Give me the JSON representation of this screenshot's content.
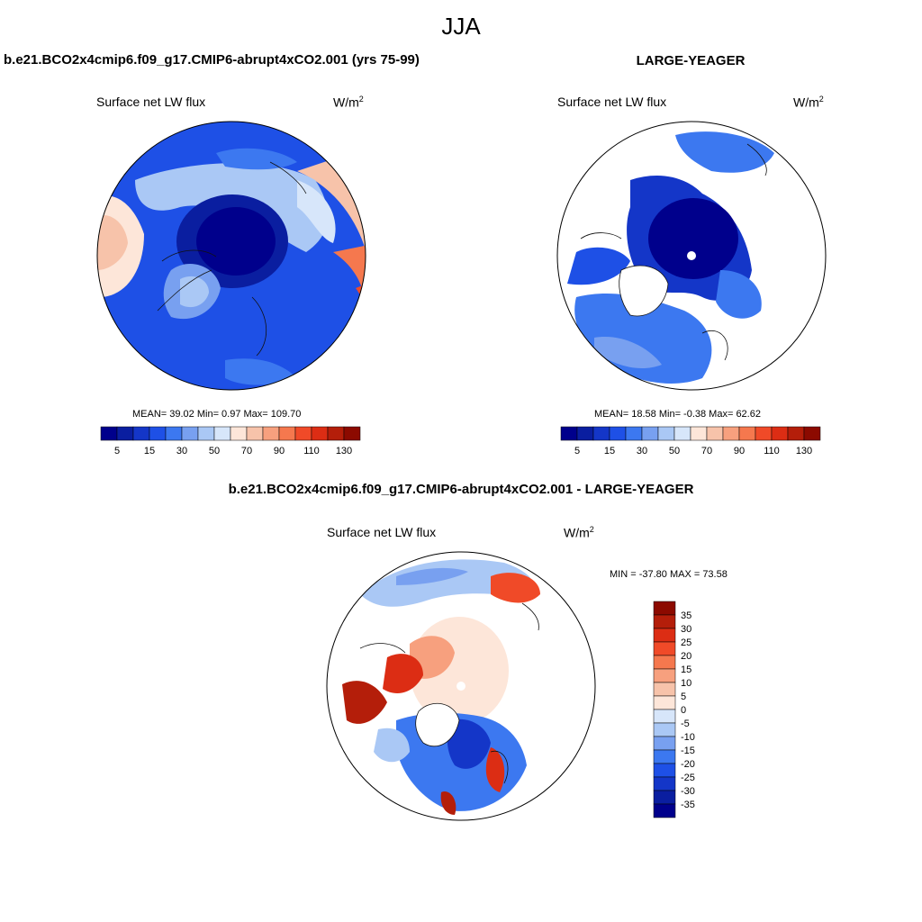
{
  "title": "JJA",
  "colors": {
    "seq": [
      "#00008c",
      "#0a1ea0",
      "#1436c8",
      "#1e50e6",
      "#3c78f0",
      "#78a0f0",
      "#aac8f5",
      "#d7e6fa",
      "#fde6d9",
      "#f7c3aa",
      "#f7a07e",
      "#f5784e",
      "#f04a28",
      "#dc2d14",
      "#b41e0a",
      "#8c0a00"
    ],
    "diff": [
      "#00008c",
      "#0a1ea0",
      "#1436c8",
      "#1e50e6",
      "#3c78f0",
      "#78a0f0",
      "#aac8f5",
      "#d7e6fa",
      "#fde6d9",
      "#f7c3aa",
      "#f7a07e",
      "#f5784e",
      "#f04a28",
      "#dc2d14",
      "#b41e0a",
      "#8c0a00"
    ]
  },
  "panels": [
    {
      "title": "b.e21.BCO2x4cmip6.f09_g17.CMIP6-abrupt4xCO2.001 (yrs 75-99)",
      "variable": "Surface net LW flux",
      "units": "W/m",
      "units_sup": "2",
      "stats": "MEAN=  39.02  Min=   0.97  Max= 109.70",
      "colorbar_labels": [
        "5",
        "15",
        "30",
        "50",
        "70",
        "90",
        "110",
        "130"
      ]
    },
    {
      "title": "LARGE-YEAGER",
      "variable": "Surface net LW flux",
      "units": "W/m",
      "units_sup": "2",
      "stats": "MEAN=  18.58  Min=  -0.38  Max=  62.62",
      "colorbar_labels": [
        "5",
        "15",
        "30",
        "50",
        "70",
        "90",
        "110",
        "130"
      ]
    },
    {
      "title": "b.e21.BCO2x4cmip6.f09_g17.CMIP6-abrupt4xCO2.001 - LARGE-YEAGER",
      "variable": "Surface net LW flux",
      "units": "W/m",
      "units_sup": "2",
      "stats": "MIN = -37.80 MAX =  73.58",
      "colorbar_labels": [
        "35",
        "30",
        "25",
        "20",
        "15",
        "10",
        "5",
        "0",
        "-5",
        "-10",
        "-15",
        "-20",
        "-25",
        "-30",
        "-35"
      ]
    }
  ]
}
